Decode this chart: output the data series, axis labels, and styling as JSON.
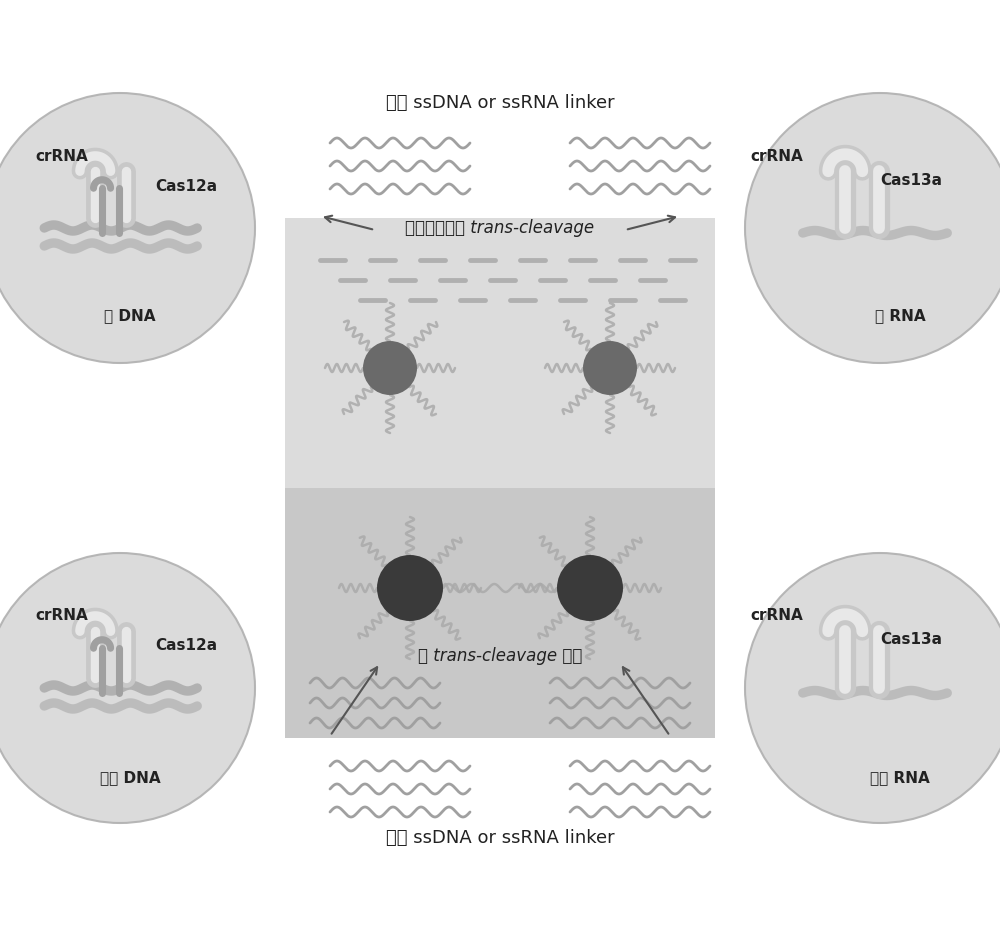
{
  "title_top": "通用 ssDNA or ssRNA linker",
  "title_bottom": "通用 ssDNA or ssRNA linker",
  "label_trans_cleavage": "依赖靶核酸的 trans-cleavage",
  "label_no_trans": "无 trans-cleavage 活性",
  "top_left_label1": "crRNA",
  "top_left_label2": "Cas12a",
  "top_left_label3": "靶 DNA",
  "top_right_label1": "crRNA",
  "top_right_label2": "Cas13a",
  "top_right_label3": "靶 RNA",
  "bottom_left_label1": "crRNA",
  "bottom_left_label2": "Cas12a",
  "bottom_left_label3": "无靶 DNA",
  "bottom_right_label1": "crRNA",
  "bottom_right_label2": "Cas13a",
  "bottom_right_label3": "无靶 RNA",
  "bg_color": "#ffffff",
  "circle_color": "#d8d8d8",
  "circle_edge": "#b0b0b0",
  "box_top_color": "#dcdcdc",
  "box_bottom_color": "#c8c8c8",
  "wave_color": "#a0a0a0",
  "dash_color": "#b0b0b0",
  "particle_dark": "#3a3a3a",
  "particle_mid": "#6a6a6a",
  "arm_color": "#aaaaaa",
  "arrow_color": "#555555",
  "crna_color": "#c0c0c0",
  "dna_color": "#aaaaaa"
}
